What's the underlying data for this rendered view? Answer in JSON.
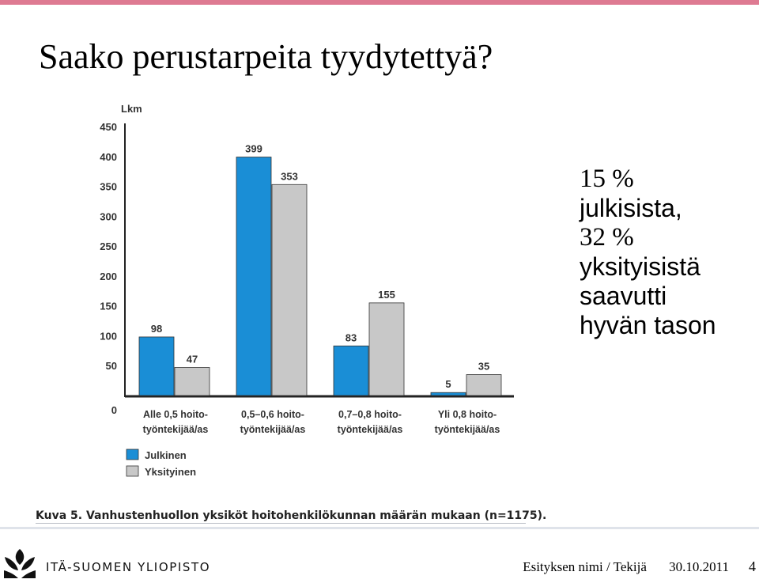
{
  "slide": {
    "title": "Saako perustarpeita tyydytettyä?",
    "callout_lines": [
      "15 %",
      "julkisista,",
      "32 %",
      "yksityisistä",
      "saavutti",
      "hyvän tason"
    ],
    "caption": "Kuva 5. Vanhustenhuollon yksiköt hoitohenkilökunnan määrän mukaan (n=1175).",
    "logo_text": "ITÄ-SUOMEN YLIOPISTO",
    "footer_author": "Esityksen nimi / Tekijä",
    "footer_date": "30.10.2011",
    "page_number": "4",
    "colors": {
      "accent_stripe": "#de7a92",
      "julkinen": "#1a8ed6",
      "yksityinen": "#c8c8c8"
    }
  },
  "chart_data": {
    "type": "bar",
    "ylabel": "Lkm",
    "ylim": [
      0,
      450
    ],
    "yticks": [
      "0",
      "50",
      "100",
      "150",
      "200",
      "250",
      "300",
      "350",
      "400",
      "450"
    ],
    "categories": [
      [
        "Alle 0,5 hoito-",
        "työntekijää/as"
      ],
      [
        "0,5–0,6 hoito-",
        "työntekijää/as"
      ],
      [
        "0,7–0,8 hoito-",
        "työntekijää/as"
      ],
      [
        "Yli 0,8 hoito-",
        "työntekijää/as"
      ]
    ],
    "series": [
      {
        "name": "Julkinen",
        "color": "#1a8ed6",
        "values": [
          98,
          399,
          83,
          5
        ]
      },
      {
        "name": "Yksityinen",
        "color": "#c8c8c8",
        "values": [
          47,
          353,
          155,
          35
        ]
      }
    ],
    "legend": "bottom-left"
  }
}
